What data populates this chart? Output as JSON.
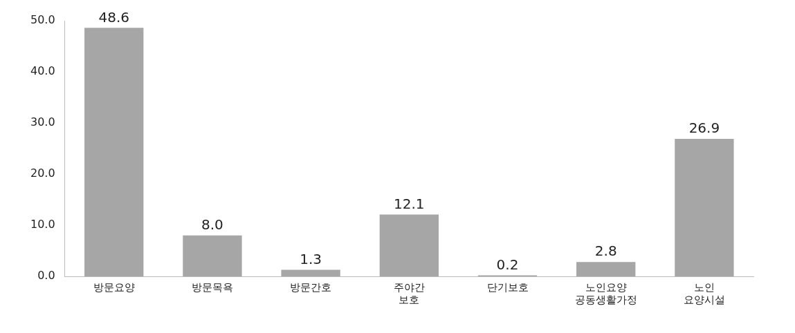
{
  "chart_data": {
    "type": "bar",
    "categories": [
      "방문요양",
      "방문목욕",
      "방문간호",
      "주야간\n보호",
      "단기보호",
      "노인요양\n공동생활가정",
      "노인\n요양시설"
    ],
    "values": [
      48.6,
      8.0,
      1.3,
      12.1,
      0.2,
      2.8,
      26.9
    ],
    "value_labels": [
      "48.6",
      "8.0",
      "1.3",
      "12.1",
      "0.2",
      "2.8",
      "26.9"
    ],
    "color": "#a6a6a6",
    "ylim": [
      0,
      50
    ],
    "yticks": [
      {
        "value": 0,
        "label": "0.0"
      },
      {
        "value": 10,
        "label": "10.0"
      },
      {
        "value": 20,
        "label": "20.0"
      },
      {
        "value": 30,
        "label": "30.0"
      },
      {
        "value": 40,
        "label": "40.0"
      },
      {
        "value": 50,
        "label": "50.0"
      }
    ],
    "grid": false,
    "legend": false
  }
}
